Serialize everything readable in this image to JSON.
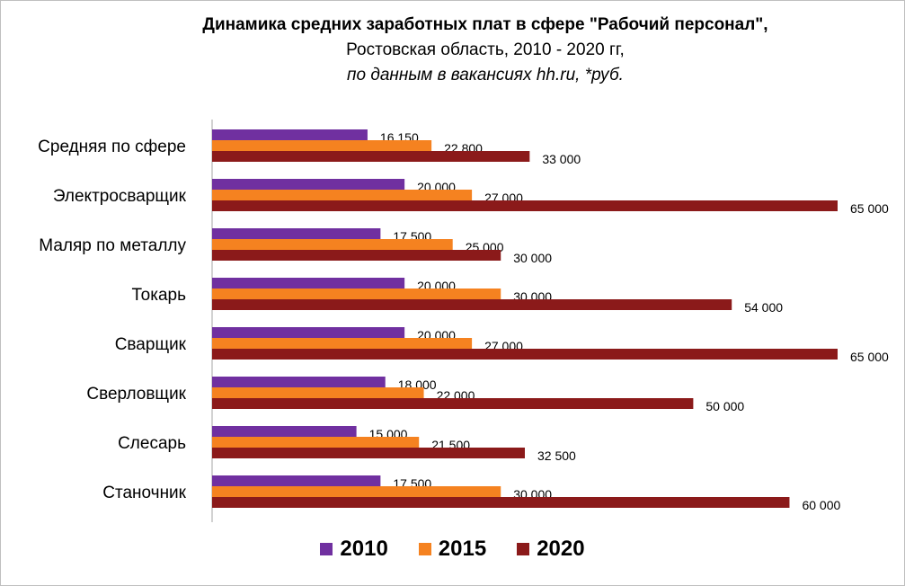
{
  "chart_data": {
    "type": "bar",
    "orientation": "horizontal",
    "title": "Динамика средних заработных плат в сфере \"Рабочий персонал\",",
    "subtitle": "Ростовская область, 2010 - 2020 гг,",
    "subtitle2": "по данным в вакансиях hh.ru,  *руб.",
    "categories": [
      "Средняя по сфере",
      "Электросварщик",
      "Маляр по металлу",
      "Токарь",
      "Сварщик",
      "Сверловщик",
      "Слесарь",
      "Станочник"
    ],
    "series": [
      {
        "name": "2010",
        "color": "#7030a0",
        "values": [
          16150,
          20000,
          17500,
          20000,
          20000,
          18000,
          15000,
          17500
        ],
        "labels": [
          "16 150",
          "20 000",
          "17 500",
          "20 000",
          "20 000",
          "18 000",
          "15 000",
          "17 500"
        ]
      },
      {
        "name": "2015",
        "color": "#f58220",
        "values": [
          22800,
          27000,
          25000,
          30000,
          27000,
          22000,
          21500,
          30000
        ],
        "labels": [
          "22 800",
          "27 000",
          "25 000",
          "30 000",
          "27 000",
          "22 000",
          "21 500",
          "30 000"
        ]
      },
      {
        "name": "2020",
        "color": "#8b1a1a",
        "values": [
          33000,
          65000,
          30000,
          54000,
          65000,
          50000,
          32500,
          60000
        ],
        "labels": [
          "33 000",
          "65 000",
          "30 000",
          "54 000",
          "65 000",
          "50 000",
          "32 500",
          "60 000"
        ]
      }
    ],
    "xlim": [
      0,
      65000
    ],
    "grid": false,
    "legend": "bottom"
  }
}
